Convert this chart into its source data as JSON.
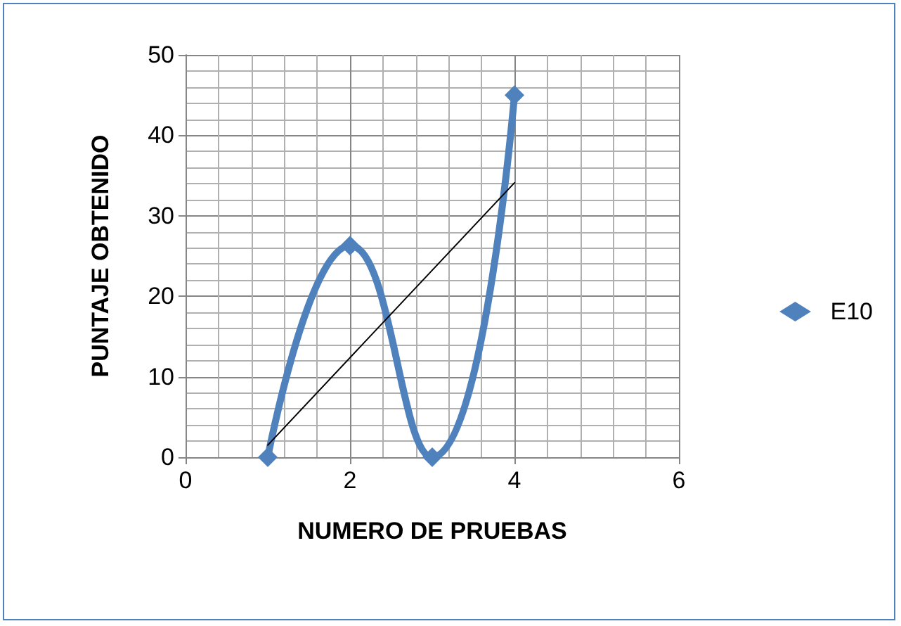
{
  "chart_data": {
    "type": "line",
    "xlabel": "NUMERO DE PRUEBAS",
    "ylabel": "PUNTAJE OBTENIDO",
    "x": [
      1,
      2,
      3,
      4
    ],
    "series": [
      {
        "name": "E10",
        "color": "#4f81bd",
        "values": [
          0,
          26.3,
          0,
          45
        ],
        "marker": "diamond"
      },
      {
        "type": "line",
        "color": "#000000",
        "x": [
          1,
          4
        ],
        "values": [
          1.5,
          34.1
        ],
        "marker": "none"
      }
    ],
    "xlim": [
      0,
      6
    ],
    "xticks": [
      0,
      2,
      4,
      6
    ],
    "ylim": [
      0,
      50
    ],
    "yticks": [
      0,
      10,
      20,
      30,
      40,
      50
    ],
    "grid": true,
    "legend": "right"
  }
}
